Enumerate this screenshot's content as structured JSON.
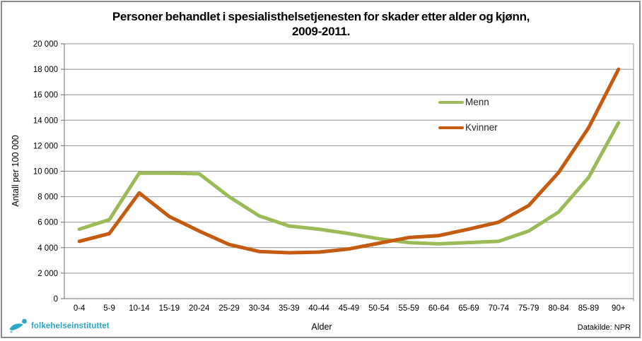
{
  "frame": {
    "border_color": "#8c8c8c",
    "background": "#ffffff"
  },
  "chart_data": {
    "type": "line",
    "title_line1": "Personer behandlet i spesialisthelsetjenesten for skader etter alder og kjønn,",
    "title_line2": "2009-2011.",
    "xlabel": "Alder",
    "ylabel": "Antall per 100 000",
    "ylim": [
      0,
      20000
    ],
    "ytick_step": 2000,
    "ytick_labels": [
      "0",
      "2 000",
      "4 000",
      "6 000",
      "8 000",
      "10 000",
      "12 000",
      "14 000",
      "16 000",
      "18 000",
      "20 000"
    ],
    "grid": true,
    "grid_color": "#949494",
    "axis_color": "#6e6e6e",
    "legend_position": "inside-right",
    "categories": [
      "0-4",
      "5-9",
      "10-14",
      "15-19",
      "20-24",
      "25-29",
      "30-34",
      "35-39",
      "40-44",
      "45-49",
      "50-54",
      "55-59",
      "60-64",
      "65-69",
      "70-74",
      "75-79",
      "80-84",
      "85-89",
      "90+"
    ],
    "series": [
      {
        "name": "Menn",
        "color": "#9bbb59",
        "values": [
          5450,
          6200,
          9850,
          9850,
          9800,
          8000,
          6500,
          5700,
          5450,
          5100,
          4700,
          4400,
          4300,
          4400,
          4500,
          5300,
          6800,
          9500,
          13800
        ]
      },
      {
        "name": "Kvinner",
        "color": "#c55a11",
        "values": [
          4500,
          5100,
          8300,
          6450,
          5300,
          4250,
          3700,
          3600,
          3650,
          3900,
          4350,
          4800,
          4950,
          5450,
          6000,
          7300,
          9900,
          13400,
          18000
        ]
      }
    ]
  },
  "footer": {
    "logo_text": "folkehelseinstituttet",
    "logo_color": "#2ba7c2",
    "source": "Datakilde: NPR"
  }
}
